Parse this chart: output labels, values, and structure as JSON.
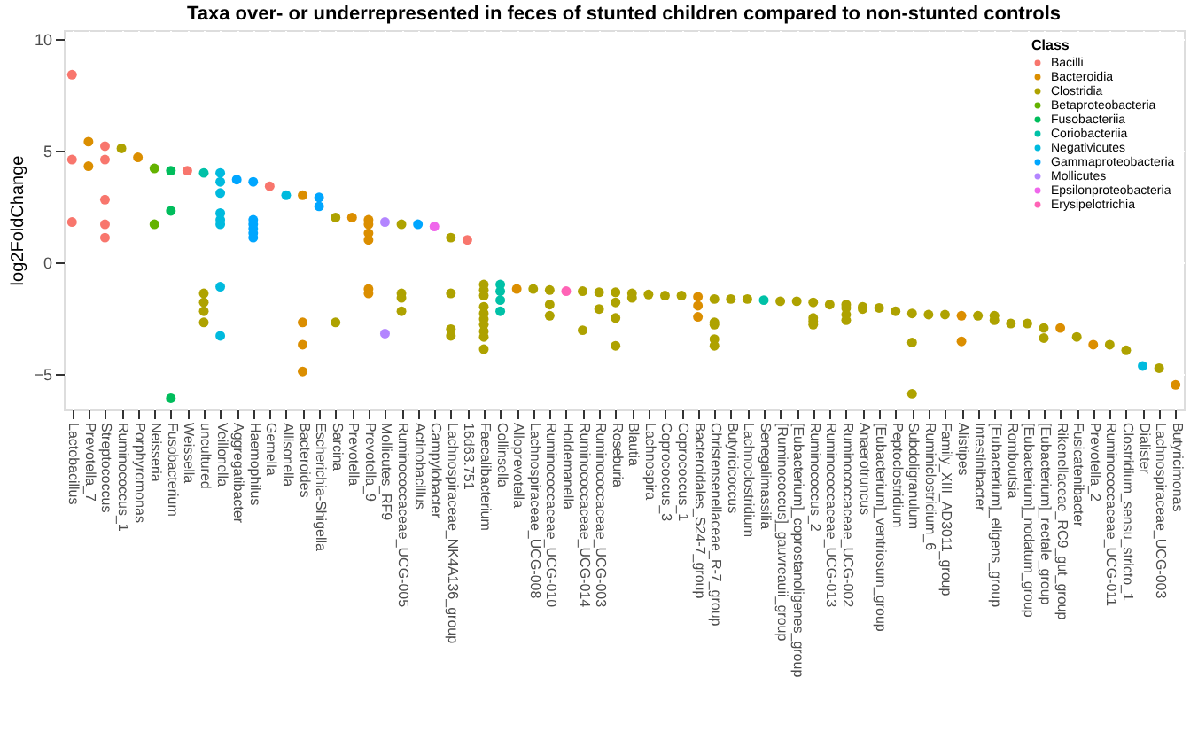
{
  "chart_data": {
    "type": "scatter",
    "title": "Taxa over- or underrepresented in feces of stunted children compared to non-stunted controls",
    "ylabel": "log2FoldChange",
    "legend_title": "Class",
    "legend": "top right",
    "grid": true,
    "marker": "circle",
    "ylim": [
      -6.6,
      10.4
    ],
    "yticks": [
      -5,
      0,
      5,
      10
    ],
    "categories": [
      "Lactobacillus",
      "Prevotella_7",
      "Streptococcus",
      "Ruminococcus_1",
      "Porphyromonas",
      "Neisseria",
      "Fusobacterium",
      "Weissella",
      "uncultured",
      "Veillonella",
      "Aggregatibacter",
      "Haemophilus",
      "Gemella",
      "Allisonella",
      "Bacteroides",
      "Escherichia-Shigella",
      "Sarcina",
      "Prevotella",
      "Prevotella_9",
      "Mollicutes_RF9",
      "Ruminococcaceae_UCG-005",
      "Actinobacillus",
      "Campylobacter",
      "Lachnospiraceae_NK4A136_group",
      "16d63.751",
      "Faecalibacterium",
      "Collinsella",
      "Alloprevotella",
      "Lachnospiraceae_UCG-008",
      "Ruminococcaceae_UCG-010",
      "Holdemanella",
      "Ruminococcaceae_UCG-014",
      "Ruminococcaceae_UCG-003",
      "Roseburia",
      "Blautia",
      "Lachnospira",
      "Coprococcus_3",
      "Coprococcus_1",
      "Bacteroidales_S24-7_group",
      "Christensenellaceae_R-7_group",
      "Butyricicoccus",
      "Lachnoclostridium",
      "Senegalimassilia",
      "[Ruminococcus]_gauvreauii_group",
      "[Eubacterium]_coprostanoligenes_group",
      "Ruminococcus_2",
      "Ruminococcaceae_UCG-013",
      "Ruminococcaceae_UCG-002",
      "Anaerotruncus",
      "[Eubacterium]_ventriosum_group",
      "Peptoclostridium",
      "Subdoligranulum",
      "Ruminiclostridium_6",
      "Family_XIII_AD3011_group",
      "Alistipes",
      "Intestinibacter",
      "[Eubacterium]_eligens_group",
      "Romboutsia",
      "[Eubacterium]_nodatum_group",
      "[Eubacterium]_rectale_group",
      "Rikenellaceae_RC9_gut_group",
      "Fusicatenibacter",
      "Prevotella_2",
      "Ruminococcaceae_UCG-011",
      "Clostridium_sensu_stricto_1",
      "Dialister",
      "Lachnospiraceae_UCG-003",
      "Butyricimonas"
    ],
    "series": [
      {
        "name": "Bacilli",
        "color": "#f8766d",
        "x": [
          "Lactobacillus",
          "Lactobacillus",
          "Lactobacillus",
          "Streptococcus",
          "Streptococcus",
          "Streptococcus",
          "Streptococcus",
          "Streptococcus",
          "Weissella",
          "Gemella",
          "16d63.751"
        ],
        "values": [
          8.4,
          4.6,
          1.8,
          5.2,
          4.6,
          2.8,
          1.7,
          1.1,
          4.1,
          3.4,
          1.0
        ]
      },
      {
        "name": "Bacteroidia",
        "color": "#db8e00",
        "x": [
          "Prevotella_7",
          "Prevotella_7",
          "Porphyromonas",
          "Bacteroides",
          "Bacteroides",
          "Bacteroides",
          "Bacteroides",
          "Prevotella",
          "Prevotella_9",
          "Prevotella_9",
          "Prevotella_9",
          "Prevotella_9",
          "Prevotella_9",
          "Prevotella_9",
          "Alloprevotella",
          "Bacteroidales_S24-7_group",
          "Bacteroidales_S24-7_group",
          "Bacteroidales_S24-7_group",
          "Alistipes",
          "Alistipes",
          "Rikenellaceae_RC9_gut_group",
          "Prevotella_2",
          "Butyricimonas"
        ],
        "values": [
          5.4,
          4.3,
          4.7,
          3.0,
          -2.7,
          -3.7,
          -4.9,
          2.0,
          1.9,
          1.7,
          1.3,
          1.0,
          -1.2,
          -1.4,
          -1.2,
          -1.55,
          -1.95,
          -2.45,
          -2.4,
          -3.55,
          -2.95,
          -3.7,
          -5.5
        ]
      },
      {
        "name": "Clostridia",
        "color": "#aea200",
        "x": [
          "Ruminococcus_1",
          "uncultured",
          "uncultured",
          "uncultured",
          "uncultured",
          "Sarcina",
          "Sarcina",
          "Ruminococcaceae_UCG-005",
          "Ruminococcaceae_UCG-005",
          "Ruminococcaceae_UCG-005",
          "Ruminococcaceae_UCG-005",
          "Lachnospiraceae_NK4A136_group",
          "Lachnospiraceae_NK4A136_group",
          "Lachnospiraceae_NK4A136_group",
          "Lachnospiraceae_NK4A136_group",
          "Faecalibacterium",
          "Faecalibacterium",
          "Faecalibacterium",
          "Faecalibacterium",
          "Faecalibacterium",
          "Faecalibacterium",
          "Faecalibacterium",
          "Faecalibacterium",
          "Faecalibacterium",
          "Faecalibacterium",
          "Lachnospiraceae_UCG-008",
          "Ruminococcaceae_UCG-010",
          "Ruminococcaceae_UCG-010",
          "Ruminococcaceae_UCG-010",
          "Ruminococcaceae_UCG-014",
          "Ruminococcaceae_UCG-014",
          "Ruminococcaceae_UCG-003",
          "Ruminococcaceae_UCG-003",
          "Roseburia",
          "Roseburia",
          "Roseburia",
          "Roseburia",
          "Blautia",
          "Blautia",
          "Lachnospira",
          "Coprococcus_3",
          "Coprococcus_1",
          "Christensenellaceae_R-7_group",
          "Christensenellaceae_R-7_group",
          "Christensenellaceae_R-7_group",
          "Christensenellaceae_R-7_group",
          "Christensenellaceae_R-7_group",
          "Butyricicoccus",
          "Lachnoclostridium",
          "[Ruminococcus]_gauvreauii_group",
          "[Eubacterium]_coprostanoligenes_group",
          "Ruminococcus_2",
          "Ruminococcus_2",
          "Ruminococcus_2",
          "Ruminococcus_2",
          "Ruminococcaceae_UCG-013",
          "Ruminococcaceae_UCG-002",
          "Ruminococcaceae_UCG-002",
          "Ruminococcaceae_UCG-002",
          "Ruminococcaceae_UCG-002",
          "Anaerotruncus",
          "Anaerotruncus",
          "[Eubacterium]_ventriosum_group",
          "Peptoclostridium",
          "Subdoligranulum",
          "Subdoligranulum",
          "Subdoligranulum",
          "Ruminiclostridium_6",
          "Family_XIII_AD3011_group",
          "Intestinibacter",
          "[Eubacterium]_eligens_group",
          "[Eubacterium]_eligens_group",
          "Romboutsia",
          "[Eubacterium]_nodatum_group",
          "[Eubacterium]_rectale_group",
          "[Eubacterium]_rectale_group",
          "Fusicatenibacter",
          "Ruminococcaceae_UCG-011",
          "Clostridium_sensu_stricto_1",
          "Lachnospiraceae_UCG-003"
        ],
        "values": [
          5.1,
          -1.4,
          -1.8,
          -2.2,
          -2.7,
          2.0,
          -2.7,
          1.7,
          -1.4,
          -1.6,
          -2.2,
          1.1,
          -1.4,
          -3.0,
          -3.3,
          -1.0,
          -1.25,
          -1.5,
          -2.0,
          -2.3,
          -2.55,
          -2.8,
          -3.1,
          -3.35,
          -3.9,
          -1.2,
          -1.25,
          -1.9,
          -2.4,
          -1.3,
          -3.05,
          -1.35,
          -2.1,
          -1.35,
          -1.8,
          -2.5,
          -3.75,
          -1.4,
          -1.6,
          -1.45,
          -1.5,
          -1.5,
          -1.65,
          -2.7,
          -2.8,
          -3.45,
          -3.75,
          -1.65,
          -1.65,
          -1.75,
          -1.75,
          -1.8,
          -2.5,
          -2.65,
          -2.8,
          -1.9,
          -1.9,
          -2.05,
          -2.35,
          -2.6,
          -2.0,
          -2.1,
          -2.05,
          -2.2,
          -2.3,
          -3.6,
          -5.9,
          -2.35,
          -2.35,
          -2.4,
          -2.4,
          -2.6,
          -2.75,
          -2.75,
          -2.95,
          -3.4,
          -3.35,
          -3.7,
          -3.95,
          -4.75
        ]
      },
      {
        "name": "Betaproteobacteria",
        "color": "#64b200",
        "x": [
          "Neisseria",
          "Neisseria"
        ],
        "values": [
          4.2,
          1.7
        ]
      },
      {
        "name": "Fusobacteriia",
        "color": "#00bd5c",
        "x": [
          "Fusobacterium",
          "Fusobacterium",
          "Fusobacterium"
        ],
        "values": [
          4.1,
          2.3,
          -6.1
        ]
      },
      {
        "name": "Coriobacteriia",
        "color": "#00c1a7",
        "x": [
          "uncultured",
          "Collinsella",
          "Collinsella",
          "Collinsella",
          "Collinsella",
          "Senegalimassilia"
        ],
        "values": [
          4.0,
          -1.0,
          -1.3,
          -1.7,
          -2.2,
          -1.7
        ]
      },
      {
        "name": "Negativicutes",
        "color": "#00bade",
        "x": [
          "Veillonella",
          "Veillonella",
          "Veillonella",
          "Veillonella",
          "Veillonella",
          "Veillonella",
          "Veillonella",
          "Veillonella",
          "Allisonella",
          "Dialister"
        ],
        "values": [
          4.0,
          3.6,
          3.1,
          2.2,
          1.9,
          1.7,
          -1.1,
          -3.3,
          3.0,
          -4.65
        ]
      },
      {
        "name": "Gammaproteobacteria",
        "color": "#00a6ff",
        "x": [
          "Aggregatibacter",
          "Haemophilus",
          "Haemophilus",
          "Haemophilus",
          "Haemophilus",
          "Haemophilus",
          "Haemophilus",
          "Escherichia-Shigella",
          "Escherichia-Shigella",
          "Actinobacillus"
        ],
        "values": [
          3.7,
          3.6,
          1.9,
          1.7,
          1.5,
          1.3,
          1.1,
          2.9,
          2.5,
          1.7
        ]
      },
      {
        "name": "Mollicutes",
        "color": "#b385ff",
        "x": [
          "Mollicutes_RF9",
          "Mollicutes_RF9"
        ],
        "values": [
          1.8,
          -3.2
        ]
      },
      {
        "name": "Epsilonproteobacteria",
        "color": "#ef67eb",
        "x": [
          "Campylobacter"
        ],
        "values": [
          1.6
        ]
      },
      {
        "name": "Erysipelotrichia",
        "color": "#ff63b6",
        "x": [
          "Holdemanella"
        ],
        "values": [
          -1.3
        ]
      }
    ]
  }
}
